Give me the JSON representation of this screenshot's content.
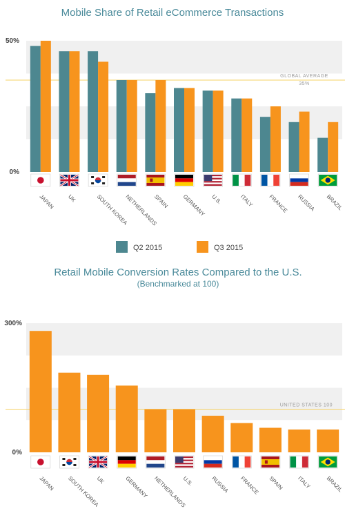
{
  "colors": {
    "q2": "#4d8790",
    "q3": "#f7941d",
    "band": "#f0f0f0",
    "reference": "#f5d060",
    "title": "#4a8a9a"
  },
  "chart_data": [
    {
      "type": "bar",
      "title": "Mobile Share of Retail eCommerce Transactions",
      "categories": [
        "JAPAN",
        "UK",
        "SOUTH KOREA",
        "NETHERLANDS",
        "SPAIN",
        "GERMANY",
        "U.S.",
        "ITALY",
        "FRANCE",
        "RUSSIA",
        "BRAZIL"
      ],
      "category_flags": [
        "flag-japan",
        "flag-uk",
        "flag-south-korea",
        "flag-netherlands",
        "flag-spain",
        "flag-germany",
        "flag-us",
        "flag-italy",
        "flag-france",
        "flag-russia",
        "flag-brazil"
      ],
      "series": [
        {
          "name": "Q2 2015",
          "color": "#4d8790",
          "values": [
            48,
            46,
            46,
            35,
            30,
            32,
            31,
            28,
            21,
            19,
            13
          ]
        },
        {
          "name": "Q3 2015",
          "color": "#f7941d",
          "values": [
            50,
            46,
            42,
            35,
            35,
            32,
            31,
            28,
            25,
            23,
            19
          ]
        }
      ],
      "ylim": [
        0,
        50
      ],
      "yticks": [
        {
          "value": 0,
          "label": "0%"
        },
        {
          "value": 50,
          "label": "50%"
        }
      ],
      "reference": {
        "value": 35,
        "label": "GLOBAL AVERAGE",
        "value_label": "35%"
      },
      "legend": {
        "position": "bottom",
        "items": [
          "Q2 2015",
          "Q3 2015"
        ]
      },
      "grid": "alternating bands",
      "xlabel": "",
      "ylabel": ""
    },
    {
      "type": "bar",
      "title": "Retail Mobile Conversion Rates Compared to the U.S.",
      "subtitle": "(Benchmarked at 100)",
      "categories": [
        "JAPAN",
        "SOUTH KOREA",
        "UK",
        "GERMANY",
        "NETHERLANDS",
        "U.S.",
        "RUSSIA",
        "FRANCE",
        "SPAIN",
        "ITALY",
        "BRAZIL"
      ],
      "category_flags": [
        "flag-japan",
        "flag-south-korea",
        "flag-uk",
        "flag-germany",
        "flag-netherlands",
        "flag-us",
        "flag-russia",
        "flag-france",
        "flag-spain",
        "flag-italy",
        "flag-brazil"
      ],
      "series": [
        {
          "color": "#f7941d",
          "values": [
            282,
            185,
            180,
            155,
            100,
            100,
            85,
            68,
            57,
            53,
            53
          ]
        }
      ],
      "ylim": [
        0,
        300
      ],
      "yticks": [
        {
          "value": 0,
          "label": "0%"
        },
        {
          "value": 300,
          "label": "300%"
        }
      ],
      "reference": {
        "value": 100,
        "label": "UNITED STATES 100"
      },
      "grid": "alternating bands",
      "xlabel": "",
      "ylabel": ""
    }
  ]
}
